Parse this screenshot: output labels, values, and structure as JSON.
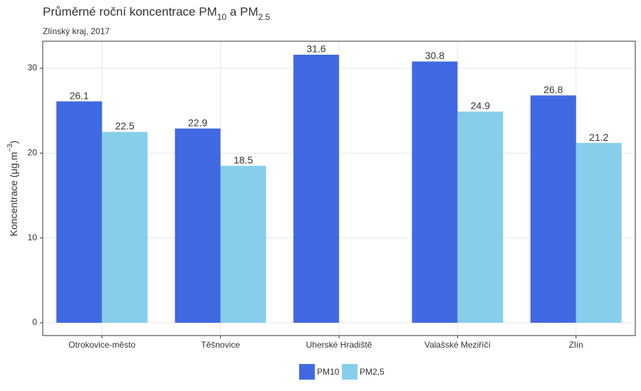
{
  "chart_data": {
    "type": "bar",
    "title_parts": [
      "Průměrné roční koncentrace PM",
      "10",
      " a PM",
      "2.5"
    ],
    "subtitle": "Zlínský kraj, 2017",
    "y_label_parts": [
      "Koncentrace  (μg.m",
      "−3",
      ")"
    ],
    "categories": [
      "Otrokovice-město",
      "Těšnovice",
      "Uherské Hradiště",
      "Valašské Meziříčí",
      "Zlín"
    ],
    "series": [
      {
        "name": "PM10",
        "color": "#4169e1",
        "values": [
          26.1,
          22.9,
          31.6,
          30.8,
          26.8
        ]
      },
      {
        "name": "PM2,5",
        "color": "#87ceeb",
        "values": [
          22.5,
          18.5,
          null,
          24.9,
          21.2
        ]
      }
    ],
    "ylim": [
      -1.51,
      33.19
    ],
    "yticks": [
      0,
      10,
      20,
      30
    ],
    "grid": true,
    "legend": "bottom"
  }
}
